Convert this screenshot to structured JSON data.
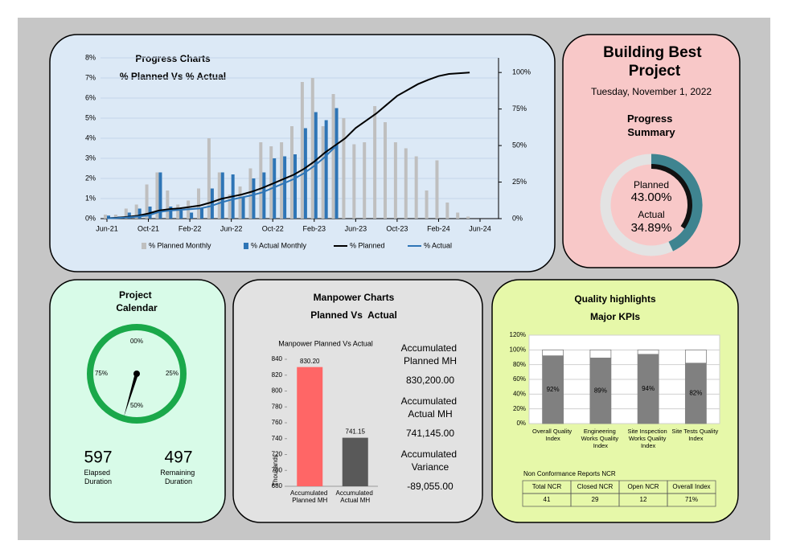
{
  "header": {
    "title": "Building Best Project",
    "date": "Tuesday, November 1, 2022"
  },
  "chart_data": [
    {
      "type": "bar-line",
      "title": "Progress Charts",
      "subtitle": "% Planned Vs % Actual",
      "categories": [
        "Jun-21",
        null,
        null,
        null,
        "Oct-21",
        null,
        null,
        null,
        "Feb-22",
        null,
        null,
        null,
        "Jun-22",
        null,
        null,
        null,
        "Oct-22",
        null,
        null,
        null,
        "Feb-23",
        null,
        null,
        null,
        "Jun-23",
        null,
        null,
        null,
        "Oct-23",
        null,
        null,
        null,
        "Feb-24",
        null,
        null,
        null,
        "Jun-24"
      ],
      "ylim": [
        0,
        8
      ],
      "yticks": [
        {
          "value": 0,
          "label": "0%"
        },
        {
          "value": 1,
          "label": "1%"
        },
        {
          "value": 2,
          "label": "2%"
        },
        {
          "value": 3,
          "label": "3%"
        },
        {
          "value": 4,
          "label": "4%"
        },
        {
          "value": 5,
          "label": "5%"
        },
        {
          "value": 6,
          "label": "6%"
        },
        {
          "value": 7,
          "label": "7%"
        },
        {
          "value": 8,
          "label": "8%"
        }
      ],
      "y2lim": [
        0,
        110
      ],
      "y2ticks": [
        {
          "value": 0,
          "label": "0%"
        },
        {
          "value": 25,
          "label": "25%"
        },
        {
          "value": 50,
          "label": "50%"
        },
        {
          "value": 75,
          "label": "75%"
        },
        {
          "value": 100,
          "label": "100%"
        }
      ],
      "grid": true,
      "series": [
        {
          "name": "% Planned Monthly",
          "type": "bar",
          "color": "#bfbfbf",
          "values": [
            0.2,
            0.2,
            0.5,
            0.7,
            1.7,
            2.3,
            1.4,
            0.7,
            0.9,
            1.5,
            4.0,
            2.3,
            1.2,
            1.6,
            2.5,
            3.8,
            3.6,
            3.8,
            4.6,
            6.8,
            7.0,
            4.6,
            6.2,
            5.0,
            3.7,
            3.8,
            5.6,
            4.8,
            3.8,
            3.5,
            3.1,
            1.4,
            2.9,
            0.8,
            0.3,
            0.1,
            null
          ]
        },
        {
          "name": "% Actual Monthly",
          "type": "bar",
          "color": "#2e75b6",
          "values": [
            0.15,
            0.1,
            0.3,
            0.5,
            0.6,
            2.3,
            0.6,
            0.4,
            0.3,
            0.5,
            1.5,
            2.3,
            2.2,
            1.1,
            2.0,
            2.3,
            3.0,
            3.1,
            3.2,
            4.5,
            5.3,
            4.9,
            5.5,
            null,
            null,
            null,
            null,
            null,
            null,
            null,
            null,
            null,
            null,
            null,
            null,
            null,
            null
          ]
        },
        {
          "name": "% Planned",
          "type": "line",
          "axis": "y2",
          "color": "#000000",
          "values": [
            0.3,
            0.6,
            1.2,
            2,
            3.5,
            5.5,
            6.5,
            7,
            8,
            9,
            11,
            13.5,
            15,
            16.5,
            18.5,
            21,
            24,
            27,
            30,
            34,
            39,
            45,
            50,
            55,
            62,
            67,
            72,
            78,
            84,
            88,
            92,
            95,
            97.5,
            99,
            99.5,
            100,
            null
          ]
        },
        {
          "name": "% Actual",
          "type": "line",
          "axis": "y2",
          "color": "#2e75b6",
          "values": [
            0.2,
            0.4,
            0.8,
            1.4,
            2.2,
            4.5,
            5.5,
            6,
            6.5,
            7,
            8.5,
            11,
            13,
            14.5,
            16,
            18,
            21,
            24,
            27,
            31,
            36,
            42,
            49,
            null,
            null,
            null,
            null,
            null,
            null,
            null,
            null,
            null,
            null,
            null,
            null,
            null,
            null
          ]
        }
      ]
    },
    {
      "type": "progress-ring",
      "title": "Progress Summary",
      "ylim": [
        0,
        100
      ],
      "track_color": "#e3e3e3",
      "series": [
        {
          "name": "Planned",
          "color": "#3f8490",
          "values": [
            43
          ],
          "value_labels": [
            "43.00%"
          ]
        },
        {
          "name": "Actual",
          "color": "#111111",
          "values": [
            34.89
          ],
          "value_labels": [
            "34.89%"
          ]
        }
      ]
    },
    {
      "type": "gauge",
      "title": "Project Calendar",
      "ylim": [
        0,
        100
      ],
      "value": 54.6,
      "color": "#1aa84a",
      "ticks": [
        {
          "value": 0,
          "label": "00%"
        },
        {
          "value": 25,
          "label": "25%"
        },
        {
          "value": 50,
          "label": "50%"
        },
        {
          "value": 75,
          "label": "75%"
        }
      ]
    },
    {
      "type": "bar",
      "title": "Manpower Charts",
      "subtitle": "Planned Vs  Actual",
      "chart_title": "Manpower Planned Vs Actual",
      "ylabel": "Thousands",
      "categories": [
        "Accumulated Planned MH",
        "Accumulated Actual MH"
      ],
      "values": [
        830.2,
        741.15
      ],
      "value_labels": [
        "830.20",
        "741.15"
      ],
      "colors": [
        "#ff6666",
        "#595959"
      ],
      "ylim": [
        680,
        840
      ],
      "yticks": [
        680,
        700,
        720,
        740,
        760,
        780,
        800,
        820,
        840
      ]
    },
    {
      "type": "stacked-bar",
      "title": "Quality highlights",
      "subtitle": "Major KPIs",
      "categories": [
        "Overall Quality Index",
        "Engineering Works Quality Index",
        "Site Inspection Works Quality Index",
        "Site Tests Quality Index"
      ],
      "ylim": [
        0,
        120
      ],
      "yticks": [
        {
          "value": 0,
          "label": "0%"
        },
        {
          "value": 20,
          "label": "20%"
        },
        {
          "value": 40,
          "label": "40%"
        },
        {
          "value": 60,
          "label": "60%"
        },
        {
          "value": 80,
          "label": "80%"
        },
        {
          "value": 100,
          "label": "100%"
        },
        {
          "value": 120,
          "label": "120%"
        }
      ],
      "grid": true,
      "series": [
        {
          "color": "#808080",
          "values": [
            92,
            89,
            94,
            82
          ],
          "value_labels": [
            "92%",
            "89%",
            "94%",
            "82%"
          ]
        },
        {
          "color": "#ffffff",
          "values": [
            8,
            11,
            6,
            18
          ]
        }
      ]
    }
  ],
  "calendar": {
    "elapsed": {
      "value": 597,
      "label": "Elapsed Duration"
    },
    "remaining": {
      "value": 497,
      "label": "Remaining Duration"
    }
  },
  "manpower_summary": [
    {
      "label": "Accumulated Planned MH",
      "value": "830,200.00"
    },
    {
      "label": "Accumulated Actual MH",
      "value": "741,145.00"
    },
    {
      "label": "Accumulated Variance",
      "value": "-89,055.00"
    }
  ],
  "ncr": {
    "title": "Non Conformance Reports NCR",
    "headers": [
      "Total NCR",
      "Closed NCR",
      "Open NCR",
      "Overall Index"
    ],
    "row": [
      41,
      29,
      12,
      "71%"
    ]
  }
}
